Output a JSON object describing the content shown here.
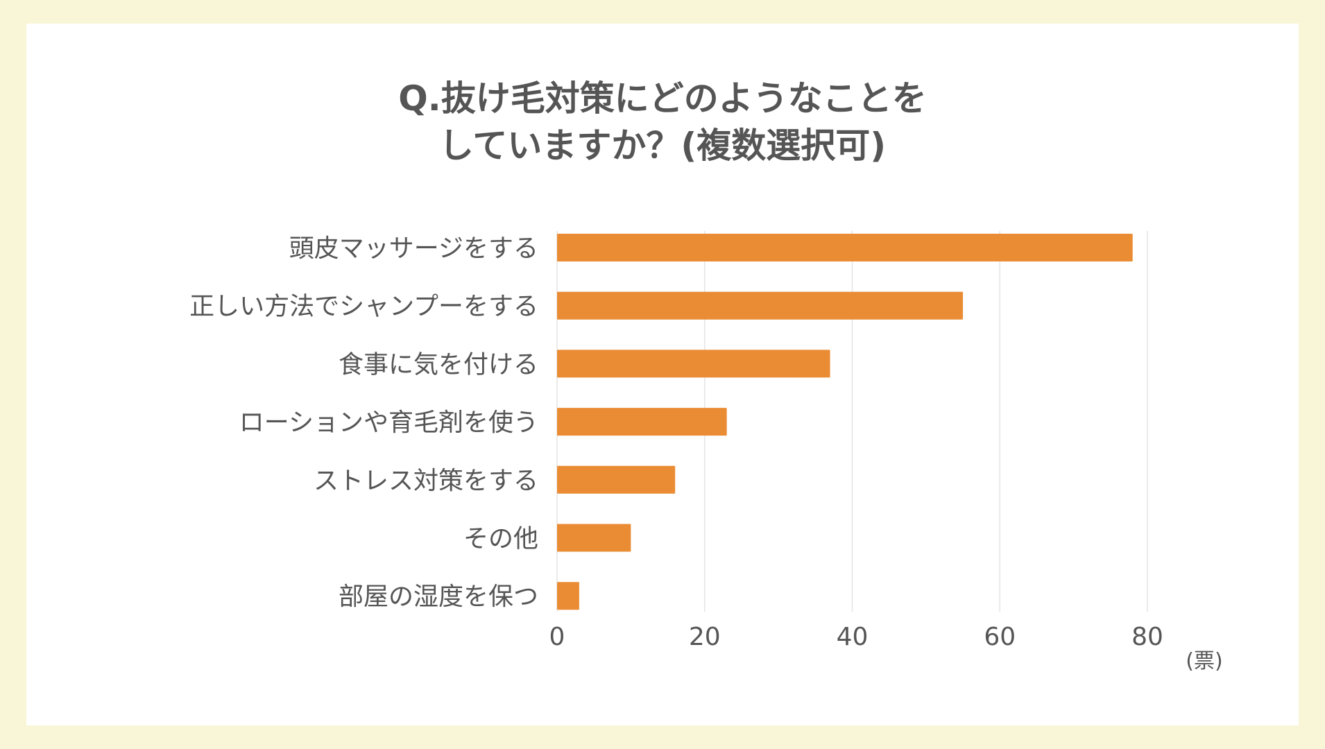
{
  "chart_data": {
    "type": "bar",
    "orientation": "horizontal",
    "title": "Q.抜け毛対策にどのようなことをしていますか？(複数選択可)",
    "title_lines": [
      "Q.抜け毛対策にどのようなことを",
      "していますか？(複数選択可)"
    ],
    "categories": [
      "頭皮マッサージをする",
      "正しい方法でシャンプーをする",
      "食事に気を付ける",
      "ローションや育毛剤を使う",
      "ストレス対策をする",
      "その他",
      "部屋の湿度を保つ"
    ],
    "values": [
      78,
      55,
      37,
      23,
      16,
      10,
      3
    ],
    "xlabel": "(票)",
    "ylabel": "",
    "xlim": [
      0,
      80
    ],
    "xticks": [
      "0",
      "20",
      "40",
      "60",
      "80"
    ],
    "grid": true,
    "legend": "none"
  },
  "colors": {
    "background": "#f8f6d6",
    "card": "#ffffff",
    "bar": "#ea8c34",
    "text": "#555555",
    "grid": "#e4e4e4"
  }
}
